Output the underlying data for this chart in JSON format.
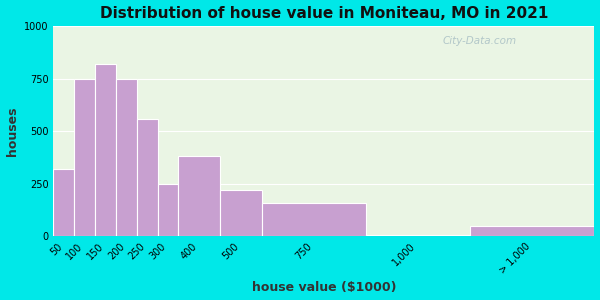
{
  "title": "Distribution of house value in Moniteau, MO in 2021",
  "xlabel": "house value ($1000)",
  "ylabel": "houses",
  "bar_labels": [
    "50",
    "100",
    "150",
    "200",
    "250",
    "300",
    "400",
    "500",
    "750",
    "1,000",
    "> 1,000"
  ],
  "bar_left_edges": [
    0,
    50,
    100,
    150,
    200,
    250,
    300,
    400,
    500,
    750,
    1000
  ],
  "bar_widths": [
    50,
    50,
    50,
    50,
    50,
    50,
    100,
    100,
    250,
    250,
    300
  ],
  "bar_values": [
    320,
    750,
    820,
    750,
    560,
    250,
    380,
    220,
    160,
    5,
    50
  ],
  "bar_color": "#c8a0d0",
  "bar_edge_color": "#ffffff",
  "ylim": [
    0,
    1000
  ],
  "yticks": [
    0,
    250,
    500,
    750,
    1000
  ],
  "xlim": [
    0,
    1300
  ],
  "background_outer": "#00e8e8",
  "background_inner": "#eaf5e4",
  "title_fontsize": 11,
  "axis_label_fontsize": 9,
  "watermark": "City-Data.com"
}
